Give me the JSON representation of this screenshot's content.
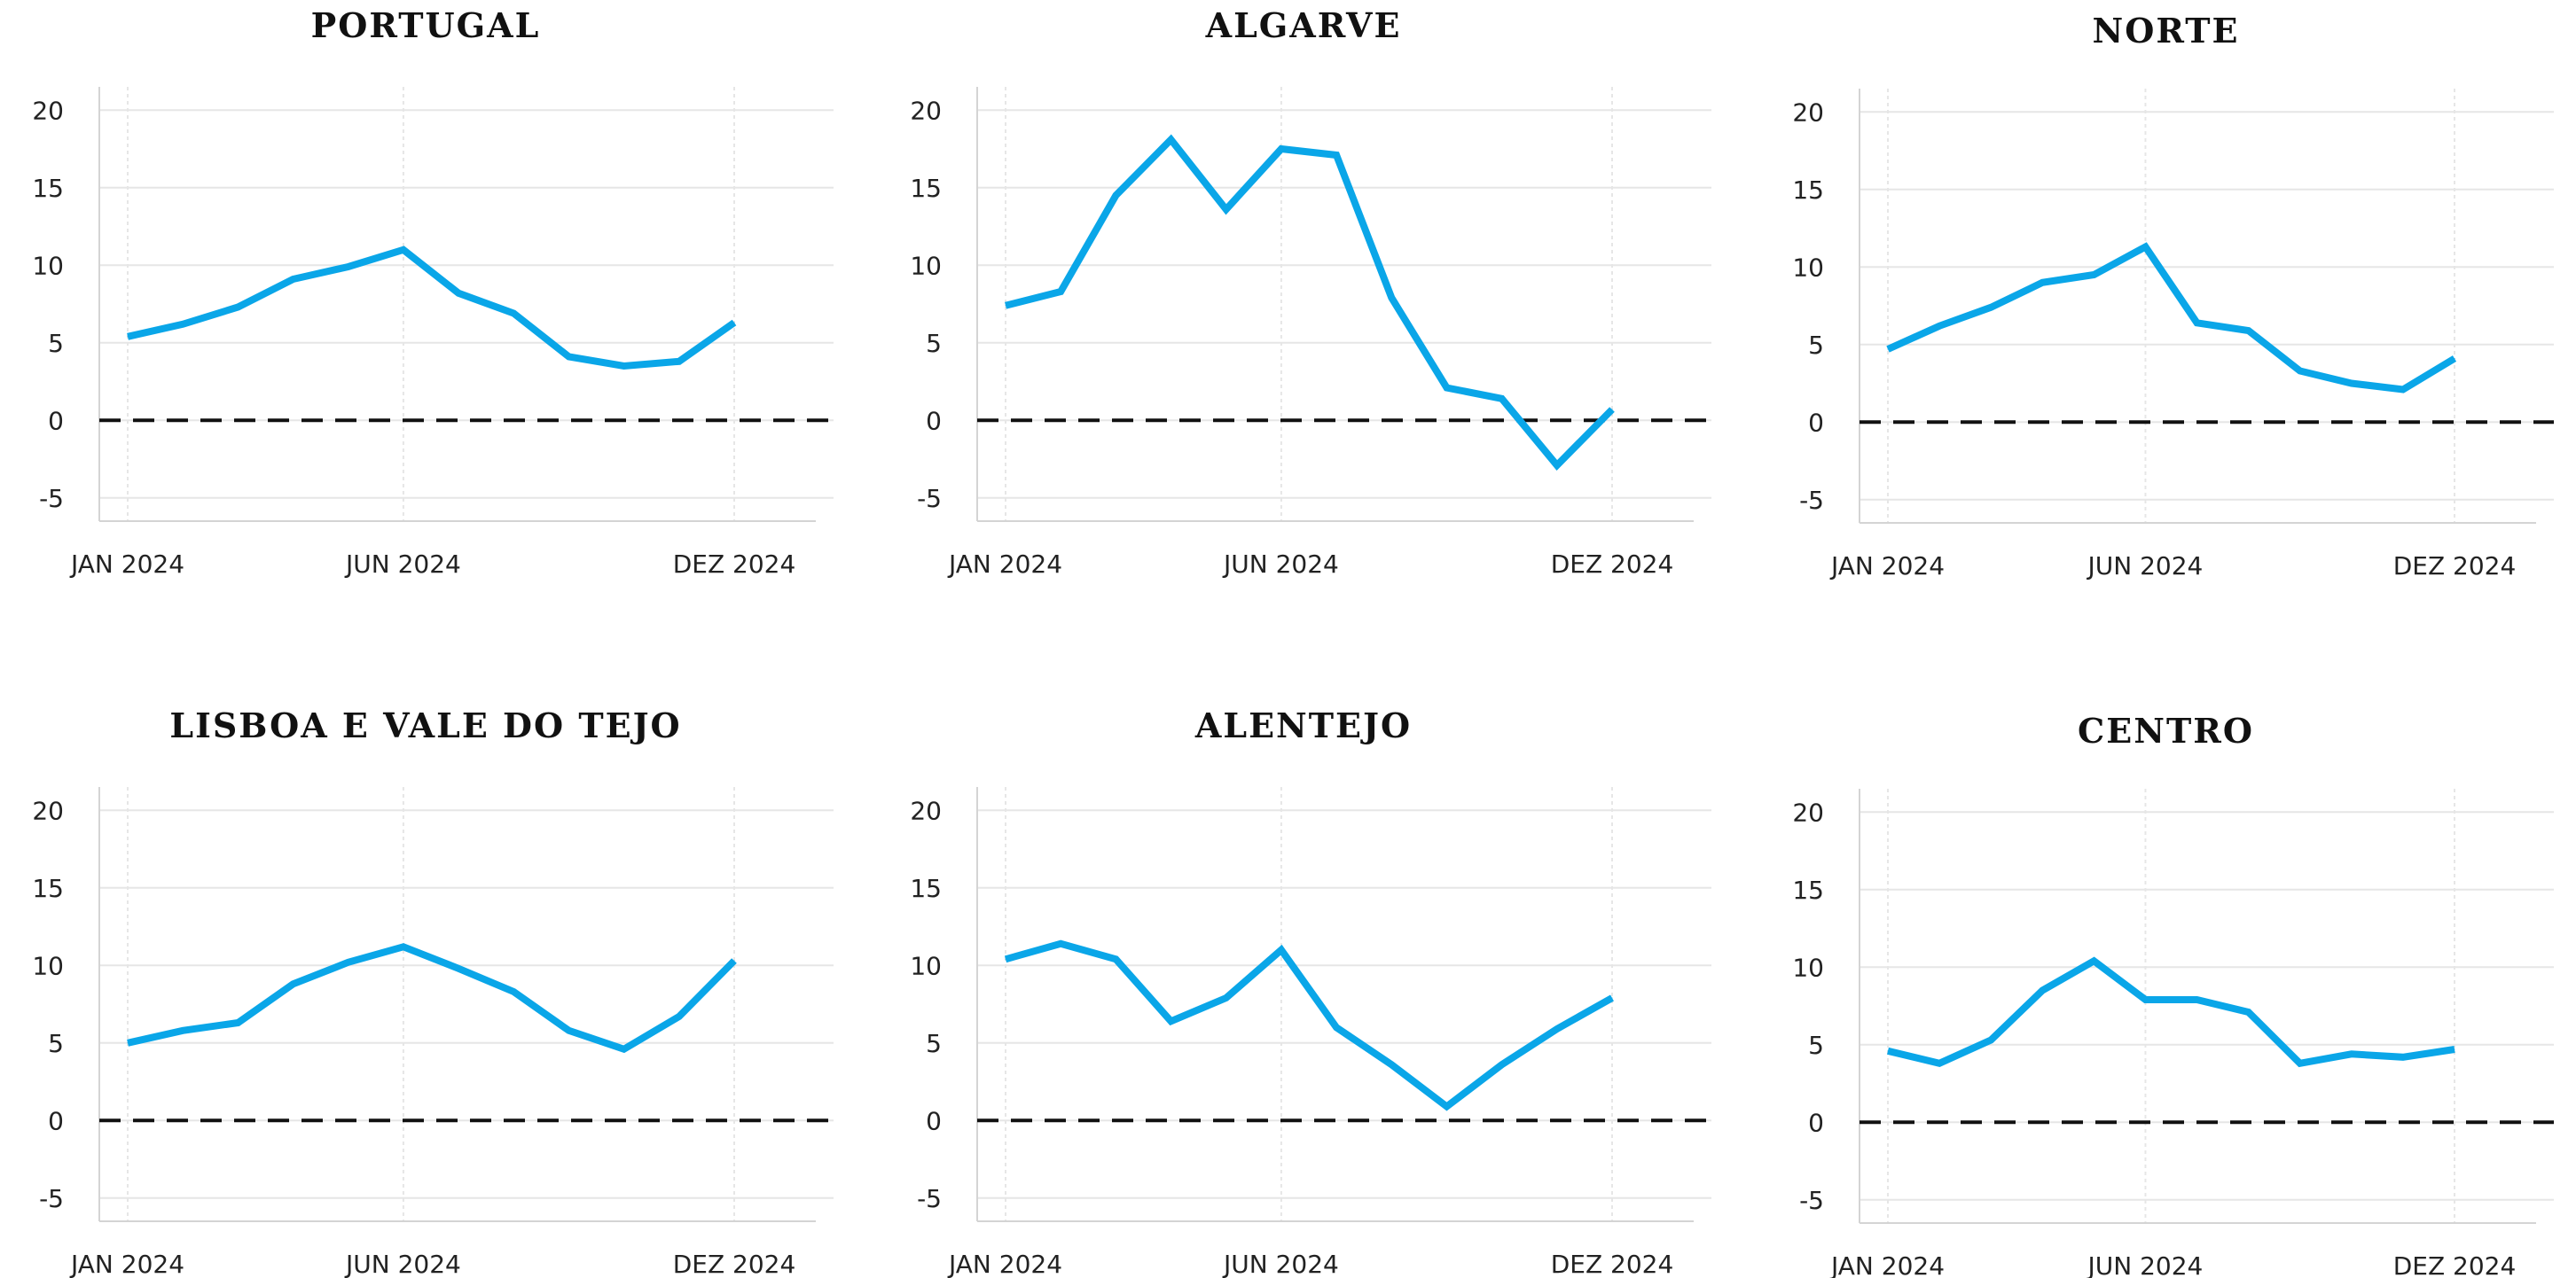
{
  "colors": {
    "line": "#0aa6e8",
    "zero": "#111111",
    "grid": "#e6e6e6",
    "axis": "#d4d4d4"
  },
  "chart_data": [
    {
      "type": "line",
      "title": "PORTUGAL",
      "x": [
        "2024-01",
        "2024-02",
        "2024-03",
        "2024-04",
        "2024-05",
        "2024-06",
        "2024-07",
        "2024-08",
        "2024-09",
        "2024-10",
        "2024-11",
        "2024-12"
      ],
      "xticks": [
        "JAN 2024",
        "JUN 2024",
        "DEZ 2024"
      ],
      "yticks": [
        "20",
        "15",
        "10",
        "5",
        "0",
        "-5"
      ],
      "ylim": [
        -6.5,
        21.5
      ],
      "series": [
        {
          "values": [
            5.4,
            6.2,
            7.3,
            9.1,
            9.9,
            11.0,
            8.2,
            6.9,
            4.1,
            3.5,
            3.8,
            6.3
          ]
        }
      ],
      "reference_line": 0,
      "grid": true
    },
    {
      "type": "line",
      "title": "ALGARVE",
      "x": [
        "2024-01",
        "2024-02",
        "2024-03",
        "2024-04",
        "2024-05",
        "2024-06",
        "2024-07",
        "2024-08",
        "2024-09",
        "2024-10",
        "2024-11",
        "2024-12"
      ],
      "xticks": [
        "JAN 2024",
        "JUN 2024",
        "DEZ 2024"
      ],
      "yticks": [
        "20",
        "15",
        "10",
        "5",
        "0",
        "-5"
      ],
      "ylim": [
        -6.5,
        21.5
      ],
      "series": [
        {
          "values": [
            7.4,
            8.3,
            14.5,
            18.1,
            13.6,
            17.5,
            17.1,
            7.9,
            2.1,
            1.4,
            -2.9,
            0.7
          ]
        }
      ],
      "reference_line": 0,
      "grid": true
    },
    {
      "type": "line",
      "title": "NORTE",
      "x": [
        "2024-01",
        "2024-02",
        "2024-03",
        "2024-04",
        "2024-05",
        "2024-06",
        "2024-07",
        "2024-08",
        "2024-09",
        "2024-10",
        "2024-11",
        "2024-12"
      ],
      "xticks": [
        "JAN 2024",
        "JUN 2024",
        "DEZ 2024"
      ],
      "yticks": [
        "20",
        "15",
        "10",
        "5",
        "0",
        "-5"
      ],
      "ylim": [
        -6.5,
        21.5
      ],
      "series": [
        {
          "values": [
            4.7,
            6.2,
            7.4,
            9.0,
            9.5,
            11.3,
            6.4,
            5.9,
            3.3,
            2.5,
            2.1,
            4.1
          ]
        }
      ],
      "reference_line": 0,
      "grid": true
    },
    {
      "type": "line",
      "title": "LISBOA E VALE DO TEJO",
      "x": [
        "2024-01",
        "2024-02",
        "2024-03",
        "2024-04",
        "2024-05",
        "2024-06",
        "2024-07",
        "2024-08",
        "2024-09",
        "2024-10",
        "2024-11",
        "2024-12"
      ],
      "xticks": [
        "JAN 2024",
        "JUN 2024",
        "DEZ 2024"
      ],
      "yticks": [
        "20",
        "15",
        "10",
        "5",
        "0",
        "-5"
      ],
      "ylim": [
        -6.5,
        21.5
      ],
      "series": [
        {
          "values": [
            5.0,
            5.8,
            6.3,
            8.8,
            10.2,
            11.2,
            9.8,
            8.3,
            5.8,
            4.6,
            6.7,
            10.3
          ]
        }
      ],
      "reference_line": 0,
      "grid": true
    },
    {
      "type": "line",
      "title": "ALENTEJO",
      "x": [
        "2024-01",
        "2024-02",
        "2024-03",
        "2024-04",
        "2024-05",
        "2024-06",
        "2024-07",
        "2024-08",
        "2024-09",
        "2024-10",
        "2024-11",
        "2024-12"
      ],
      "xticks": [
        "JAN 2024",
        "JUN 2024",
        "DEZ 2024"
      ],
      "yticks": [
        "20",
        "15",
        "10",
        "5",
        "0",
        "-5"
      ],
      "ylim": [
        -6.5,
        21.5
      ],
      "series": [
        {
          "values": [
            10.4,
            11.4,
            10.4,
            6.4,
            7.9,
            11.0,
            6.0,
            3.6,
            0.9,
            3.6,
            5.9,
            7.9
          ]
        }
      ],
      "reference_line": 0,
      "grid": true
    },
    {
      "type": "line",
      "title": "CENTRO",
      "x": [
        "2024-01",
        "2024-02",
        "2024-03",
        "2024-04",
        "2024-05",
        "2024-06",
        "2024-07",
        "2024-08",
        "2024-09",
        "2024-10",
        "2024-11",
        "2024-12"
      ],
      "xticks": [
        "JAN 2024",
        "JUN 2024",
        "DEZ 2024"
      ],
      "yticks": [
        "20",
        "15",
        "10",
        "5",
        "0",
        "-5"
      ],
      "ylim": [
        -6.5,
        21.5
      ],
      "series": [
        {
          "values": [
            4.6,
            3.8,
            5.3,
            8.5,
            10.4,
            7.9,
            7.9,
            7.1,
            3.8,
            4.4,
            4.2,
            4.7
          ]
        }
      ],
      "reference_line": 0,
      "grid": true
    }
  ]
}
